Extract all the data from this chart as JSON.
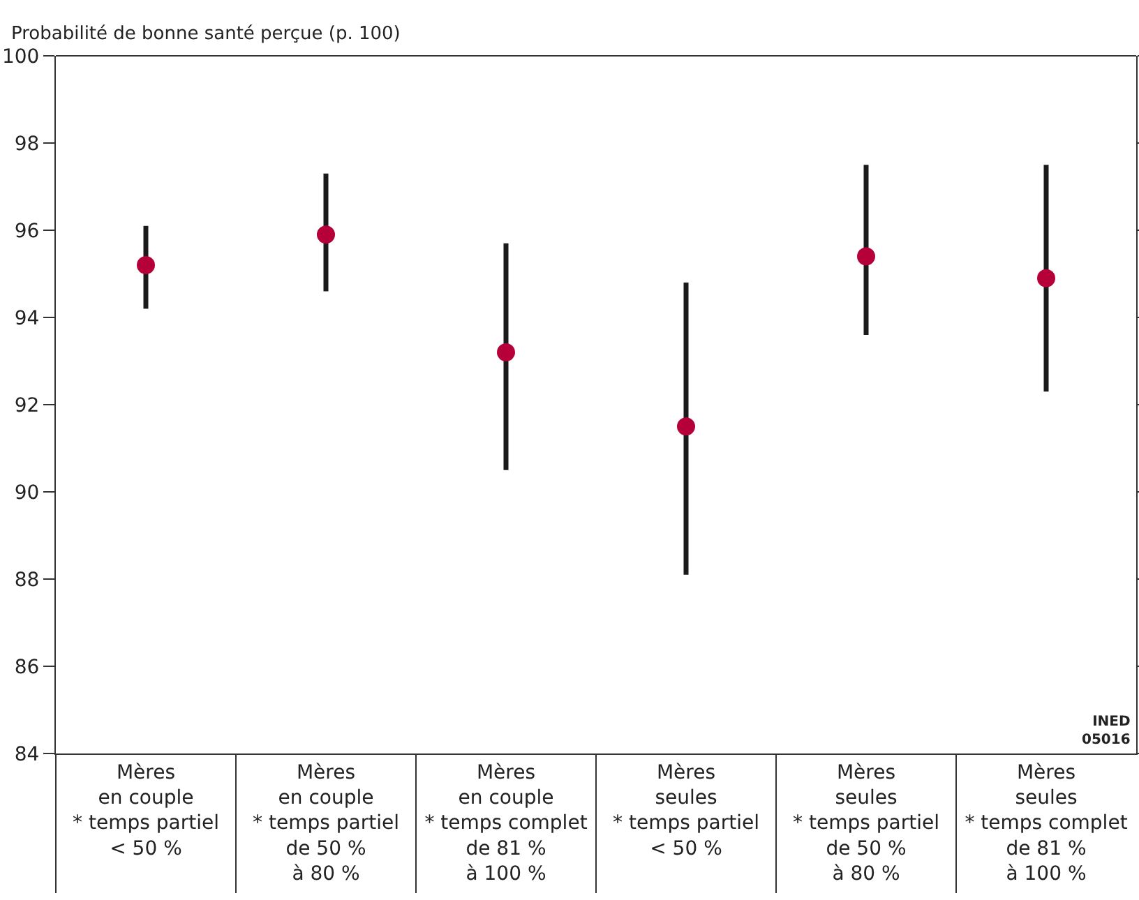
{
  "chart_data": {
    "type": "scatter",
    "ylabel": "Probabilité de bonne santé perçue (p. 100)",
    "categories": [
      "Mères\nen couple\n* temps partiel\n< 50 %",
      "Mères\nen couple\n* temps partiel\nde 50 %\nà 80 %",
      "Mères\nen couple\n* temps complet\nde 81 %\nà 100 %",
      "Mères\nseules\n* temps partiel\n< 50 %",
      "Mères\nseules\n* temps partiel\nde 50 %\nà 80 %",
      "Mères\nseules\n* temps complet\nde 81 %\nà 100 %"
    ],
    "series": [
      {
        "color": "#b5003a",
        "values": [
          95.2,
          95.9,
          93.2,
          91.5,
          95.4,
          94.9
        ],
        "errors": [
          [
            94.2,
            96.1
          ],
          [
            94.6,
            97.3
          ],
          [
            90.5,
            95.7
          ],
          [
            88.1,
            94.8
          ],
          [
            93.6,
            97.5
          ],
          [
            92.3,
            97.5
          ]
        ]
      }
    ],
    "ylim": [
      84,
      100
    ],
    "yticks": [
      84,
      86,
      88,
      90,
      92,
      94,
      96,
      98,
      100
    ],
    "marker": "circle",
    "grid": false,
    "annotations": [
      "INED\n05016"
    ]
  }
}
